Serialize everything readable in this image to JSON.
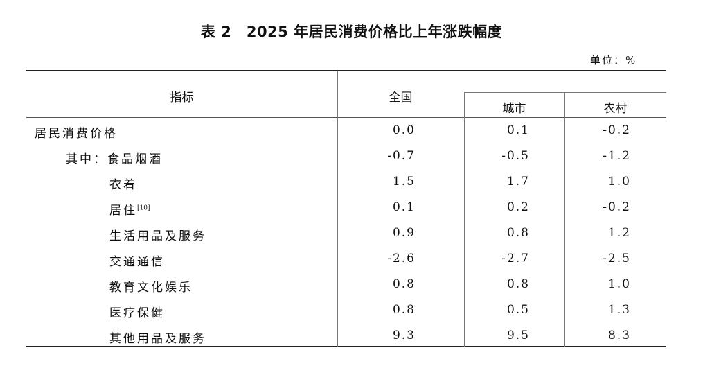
{
  "title": "表 2　2025 年居民消费价格比上年涨跌幅度",
  "unit": "单位：%",
  "headers": {
    "indicator": "指标",
    "national": "全国",
    "urban": "城市",
    "rural": "农村"
  },
  "rows": [
    {
      "label": "居民消费价格",
      "sup": "",
      "level": 0,
      "national": "0.0",
      "urban": "0.1",
      "rural": "-0.2"
    },
    {
      "label": "其中：食品烟酒",
      "sup": "",
      "level": 1,
      "national": "-0.7",
      "urban": "-0.5",
      "rural": "-1.2"
    },
    {
      "label": "衣着",
      "sup": "",
      "level": 2,
      "national": "1.5",
      "urban": "1.7",
      "rural": "1.0"
    },
    {
      "label": "居住",
      "sup": "[10]",
      "level": 2,
      "national": "0.1",
      "urban": "0.2",
      "rural": "-0.2"
    },
    {
      "label": "生活用品及服务",
      "sup": "",
      "level": 2,
      "national": "0.9",
      "urban": "0.8",
      "rural": "1.2"
    },
    {
      "label": "交通通信",
      "sup": "",
      "level": 2,
      "national": "-2.6",
      "urban": "-2.7",
      "rural": "-2.5"
    },
    {
      "label": "教育文化娱乐",
      "sup": "",
      "level": 2,
      "national": "0.8",
      "urban": "0.8",
      "rural": "1.0"
    },
    {
      "label": "医疗保健",
      "sup": "",
      "level": 2,
      "national": "0.8",
      "urban": "0.5",
      "rural": "1.3"
    },
    {
      "label": "其他用品及服务",
      "sup": "",
      "level": 2,
      "national": "9.3",
      "urban": "9.5",
      "rural": "8.3"
    }
  ]
}
